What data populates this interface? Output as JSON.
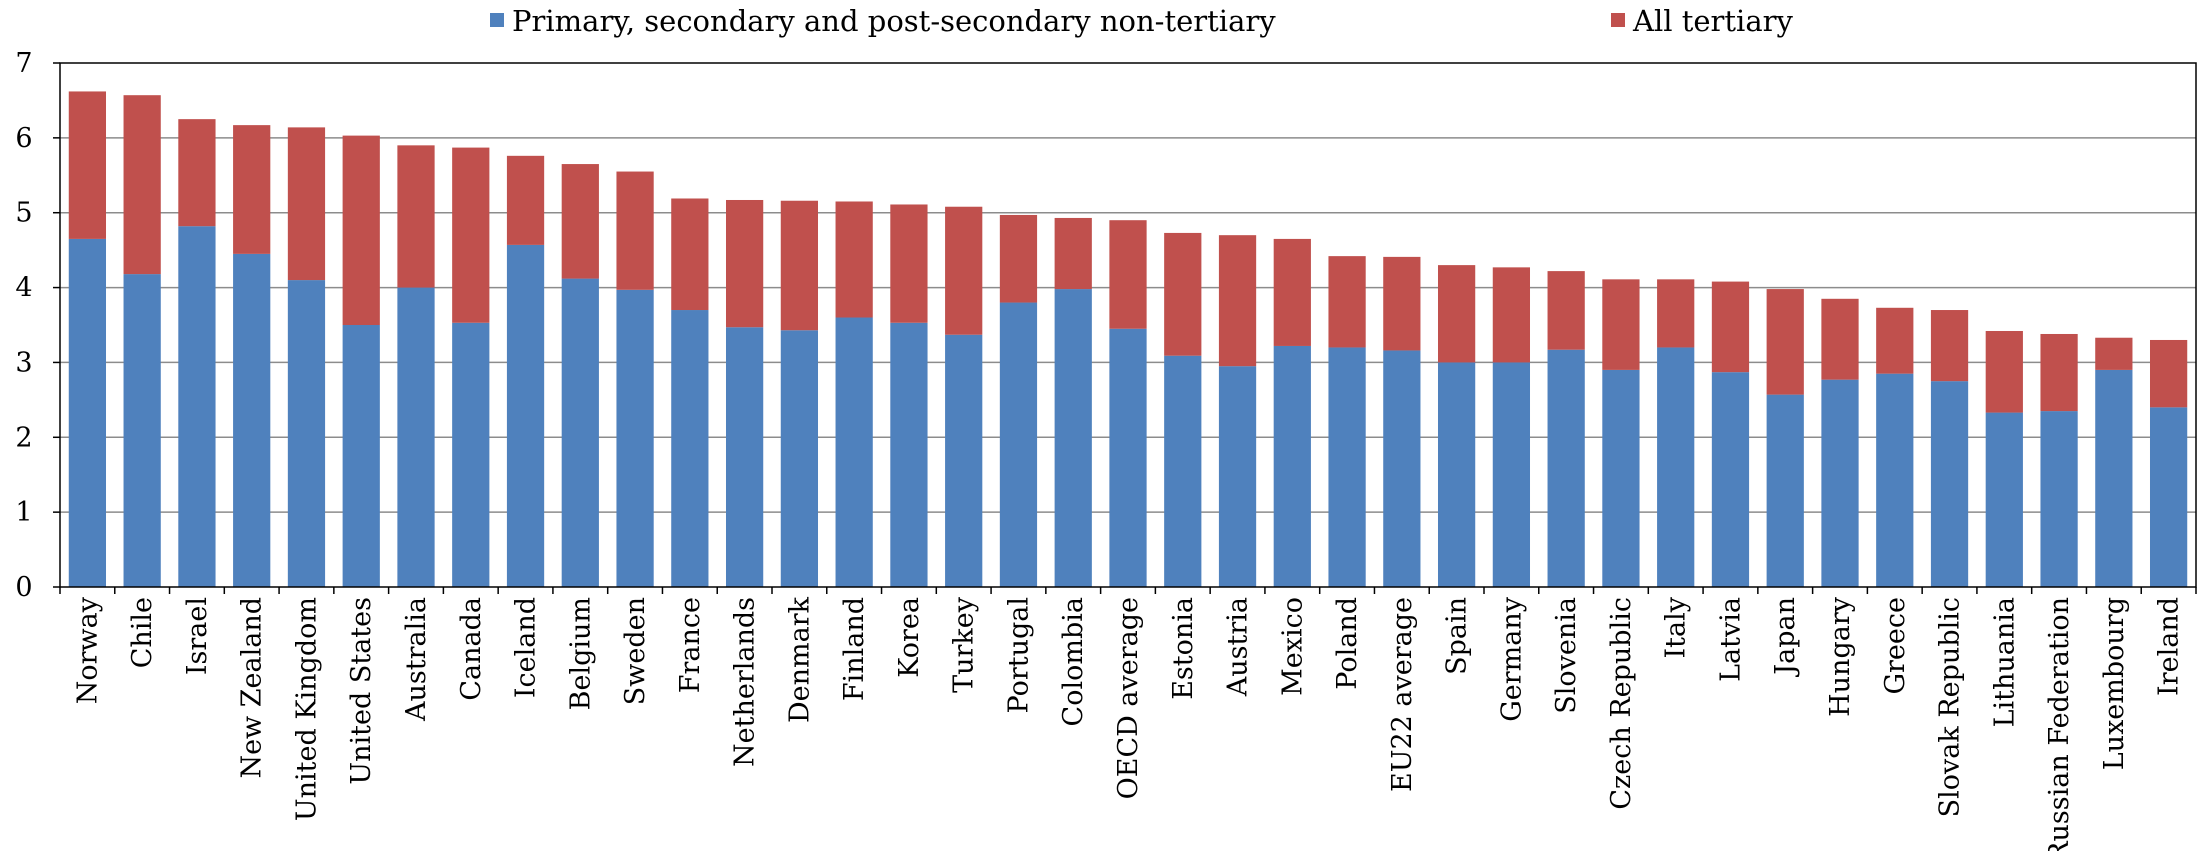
{
  "chart_data": {
    "type": "bar",
    "stacked": true,
    "title": "",
    "xlabel": "",
    "ylabel": "",
    "ylim": [
      0,
      7
    ],
    "yticks": [
      0,
      1,
      2,
      3,
      4,
      5,
      6,
      7
    ],
    "grid": true,
    "legend_position": "top",
    "categories": [
      "Norway",
      "Chile",
      "Israel",
      "New Zealand",
      "United Kingdom",
      "United States",
      "Australia",
      "Canada",
      "Iceland",
      "Belgium",
      "Sweden",
      "France",
      "Netherlands",
      "Denmark",
      "Finland",
      "Korea",
      "Turkey",
      "Portugal",
      "Colombia",
      "OECD average",
      "Estonia",
      "Austria",
      "Mexico",
      "Poland",
      "EU22 average",
      "Spain",
      "Germany",
      "Slovenia",
      "Czech Republic",
      "Italy",
      "Latvia",
      "Japan",
      "Hungary",
      "Greece",
      "Slovak Republic",
      "Lithuania",
      "Russian Federation",
      "Luxembourg",
      "Ireland"
    ],
    "series": [
      {
        "name": "Primary, secondary and post-secondary non-tertiary",
        "color": "#4F81BD",
        "values": [
          4.65,
          4.18,
          4.82,
          4.45,
          4.1,
          3.5,
          4.0,
          3.53,
          4.57,
          4.12,
          3.97,
          3.7,
          3.47,
          3.43,
          3.6,
          3.53,
          3.37,
          3.8,
          3.98,
          3.45,
          3.09,
          2.95,
          3.22,
          3.2,
          3.16,
          3.0,
          3.0,
          3.17,
          2.9,
          3.2,
          2.87,
          2.57,
          2.77,
          2.85,
          2.75,
          2.33,
          2.35,
          2.9,
          2.4
        ]
      },
      {
        "name": "All tertiary",
        "color": "#C0504D",
        "values": [
          1.97,
          2.39,
          1.43,
          1.72,
          2.04,
          2.53,
          1.9,
          2.34,
          1.19,
          1.53,
          1.58,
          1.49,
          1.7,
          1.73,
          1.55,
          1.58,
          1.71,
          1.17,
          0.95,
          1.45,
          1.64,
          1.75,
          1.43,
          1.22,
          1.25,
          1.3,
          1.27,
          1.05,
          1.21,
          0.91,
          1.21,
          1.41,
          1.08,
          0.88,
          0.95,
          1.09,
          1.03,
          0.43,
          0.9
        ]
      }
    ]
  }
}
